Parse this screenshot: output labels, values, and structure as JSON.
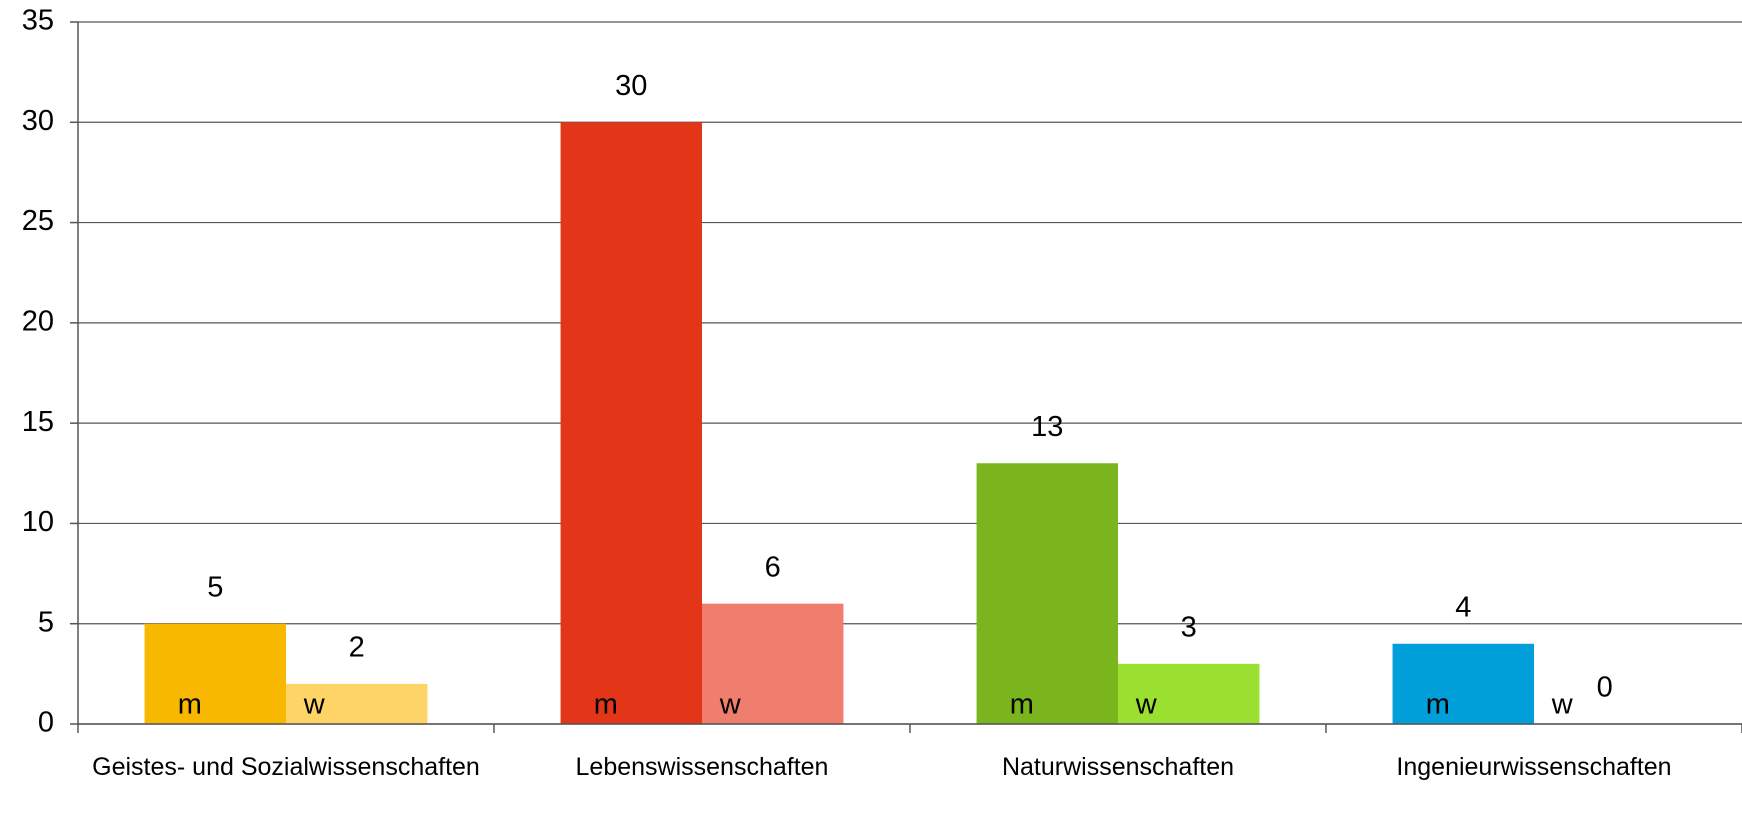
{
  "chart_data": {
    "type": "bar",
    "categories": [
      "Geistes- und Sozialwissenschaften",
      "Lebenswissenschaften",
      "Naturwissenschaften",
      "Ingenieurwissenschaften"
    ],
    "series": [
      {
        "name": "m",
        "colors": [
          "#f9b800",
          "#e33517",
          "#7ab51d",
          "#009fd9"
        ],
        "values": [
          5,
          30,
          13,
          4
        ]
      },
      {
        "name": "w",
        "colors": [
          "#ffd466",
          "#f07e6e",
          "#9be031",
          "#66c5ec"
        ],
        "values": [
          2,
          6,
          3,
          0
        ]
      }
    ],
    "ylim": [
      0,
      35
    ],
    "yticks": [
      0,
      5,
      10,
      15,
      20,
      25,
      30,
      35
    ],
    "grid": true
  }
}
